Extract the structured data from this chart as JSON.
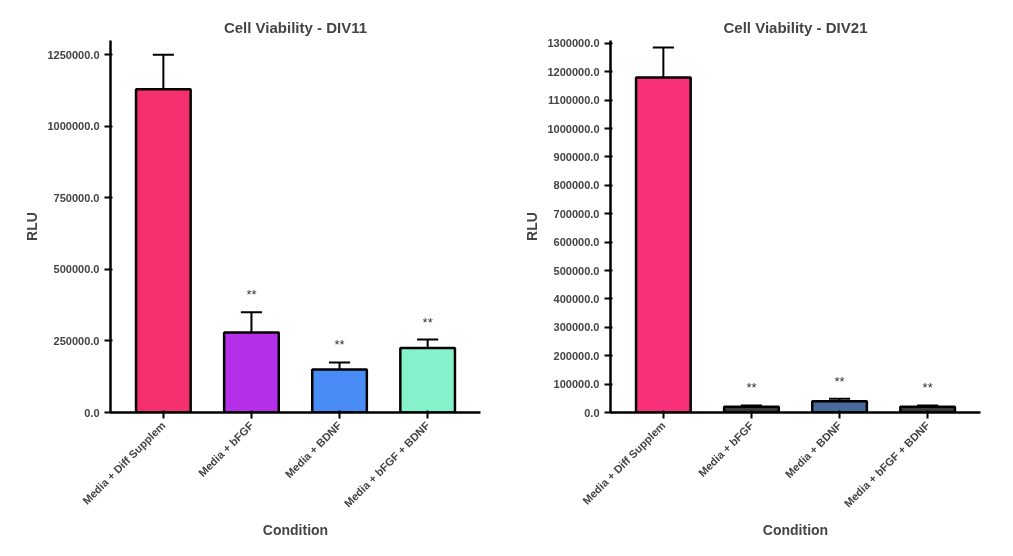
{
  "chart_data": [
    {
      "type": "bar",
      "title": "Cell Viability - DIV11",
      "xlabel": "Condition",
      "ylabel": "RLU",
      "categories": [
        "Media + Diff Supplem",
        "Media + bFGF",
        "Media + BDNF",
        "Media + bFGF + BDNF"
      ],
      "values": [
        1130000,
        280000,
        150000,
        225000
      ],
      "colors": [
        "#f5306e",
        "#b530e8",
        "#4a8cf5",
        "#85f2cc"
      ],
      "errors": [
        [
          1130000,
          1250000
        ],
        [
          280000,
          350000
        ],
        [
          150000,
          175000
        ],
        [
          225000,
          255000
        ]
      ],
      "ylim": [
        0,
        1300000
      ],
      "yticks": [
        {
          "value": 0,
          "label": "0.0"
        },
        {
          "value": 250000,
          "label": "250000.0"
        },
        {
          "value": 500000,
          "label": "500000.0"
        },
        {
          "value": 750000,
          "label": "750000.0"
        },
        {
          "value": 1000000,
          "label": "1000000.0"
        },
        {
          "value": 1250000,
          "label": "1250000.0"
        }
      ],
      "annotations": [
        {
          "text": "**",
          "x": "Media + bFGF",
          "y": 350000
        },
        {
          "text": "**",
          "x": "Media + BDNF",
          "y": 175000
        },
        {
          "text": "**",
          "x": "Media + bFGF + BDNF",
          "y": 255000
        }
      ],
      "grid": false
    },
    {
      "type": "bar",
      "title": "Cell Viability - DIV21",
      "xlabel": "Condition",
      "ylabel": "RLU",
      "categories": [
        "Media + Diff Supplem",
        "Media + bFGF",
        "Media + BDNF",
        "Media + bFGF + BDNF"
      ],
      "values": [
        1180000,
        20000,
        40000,
        20000
      ],
      "colors": [
        "#f8307a",
        "#3a3a3a",
        "#4a6a9a",
        "#3a3a3a"
      ],
      "errors": [
        [
          1180000,
          1285000
        ],
        [
          20000,
          25000
        ],
        [
          40000,
          48000
        ],
        [
          20000,
          25000
        ]
      ],
      "ylim": [
        0,
        1310000
      ],
      "yticks": [
        {
          "value": 0,
          "label": "0.0"
        },
        {
          "value": 100000,
          "label": "100000.0"
        },
        {
          "value": 200000,
          "label": "200000.0"
        },
        {
          "value": 300000,
          "label": "300000.0"
        },
        {
          "value": 400000,
          "label": "400000.0"
        },
        {
          "value": 500000,
          "label": "500000.0"
        },
        {
          "value": 600000,
          "label": "600000.0"
        },
        {
          "value": 700000,
          "label": "700000.0"
        },
        {
          "value": 800000,
          "label": "800000.0"
        },
        {
          "value": 900000,
          "label": "900000.0"
        },
        {
          "value": 1000000,
          "label": "1000000.0"
        },
        {
          "value": 1100000,
          "label": "1100000.0"
        },
        {
          "value": 1200000,
          "label": "1200000.0"
        },
        {
          "value": 1300000,
          "label": "1300000.0"
        }
      ],
      "annotations": [
        {
          "text": "**",
          "x": "Media + bFGF",
          "y": 25000
        },
        {
          "text": "**",
          "x": "Media + BDNF",
          "y": 48000
        },
        {
          "text": "**",
          "x": "Media + bFGF + BDNF",
          "y": 25000
        }
      ],
      "grid": false
    }
  ]
}
